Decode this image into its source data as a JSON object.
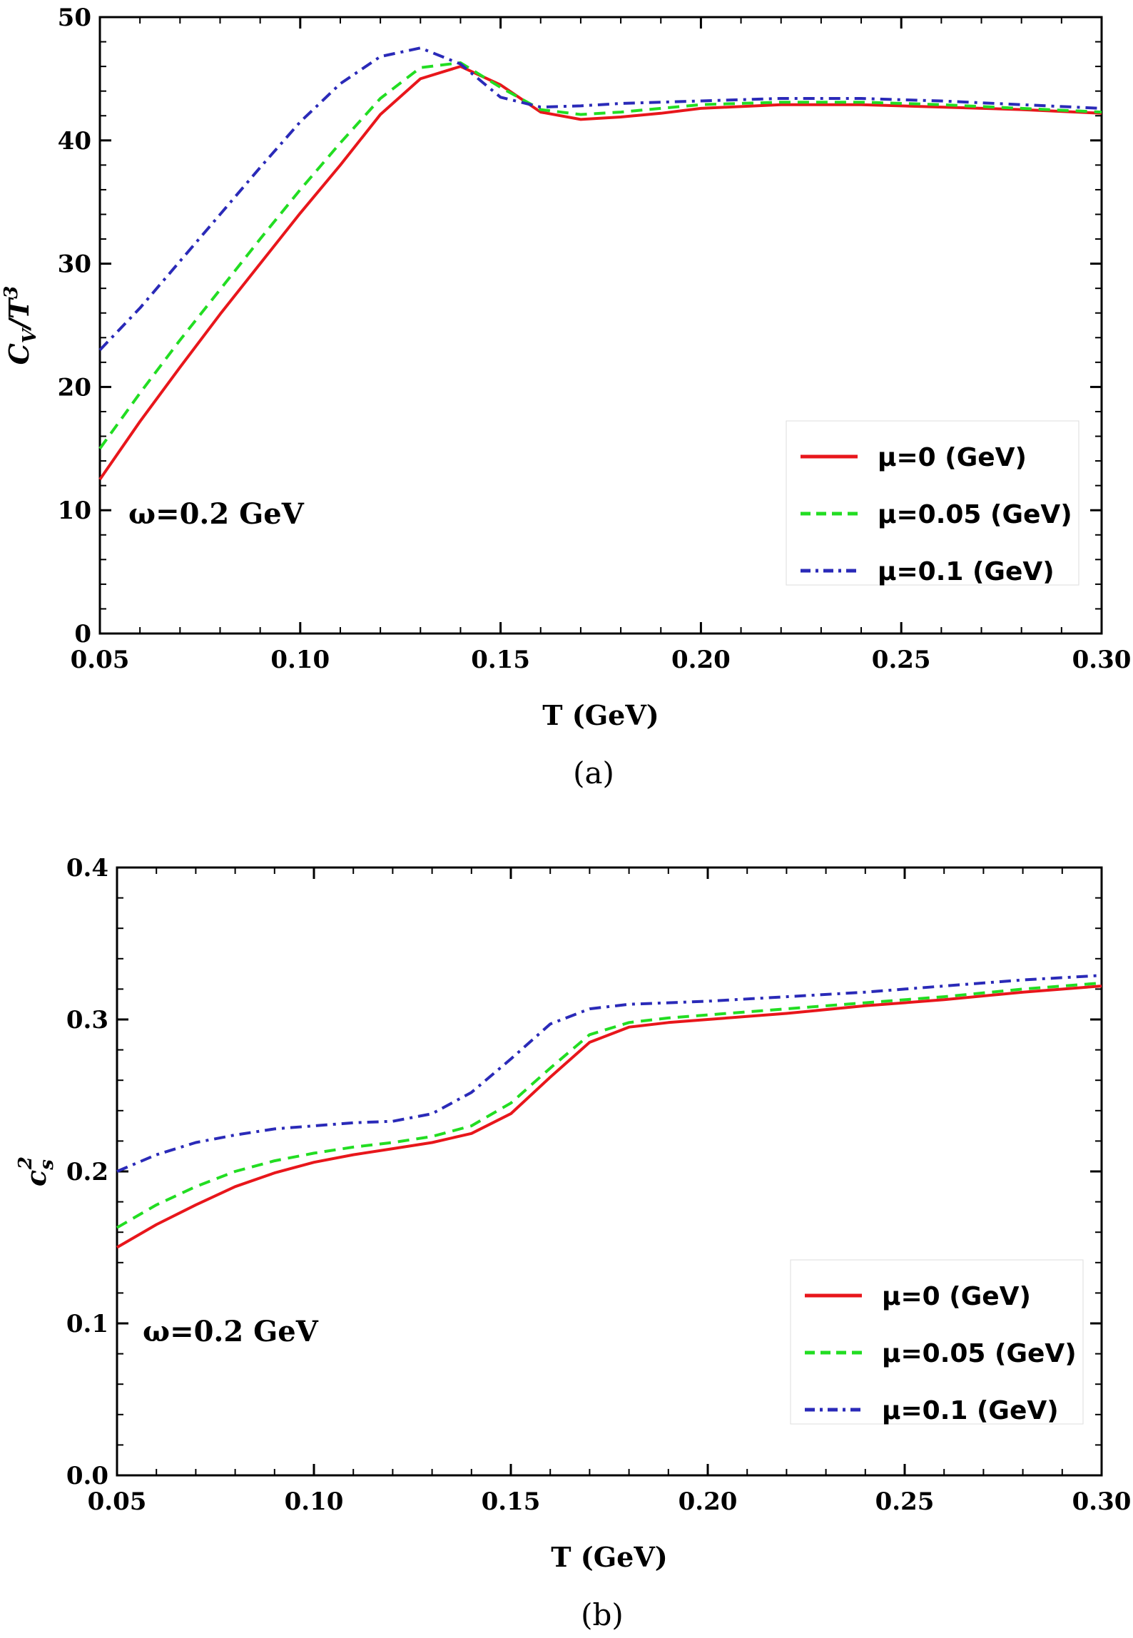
{
  "chart_data": [
    {
      "type": "line",
      "panel_label": "(a)",
      "xlabel": "T (GeV)",
      "ylabel_main": "C",
      "ylabel_sub": "V",
      "ylabel_rest": "/T",
      "ylabel_sup": "3",
      "xlim": [
        0.05,
        0.3
      ],
      "ylim": [
        0,
        50
      ],
      "xticks": [
        "0.05",
        "0.10",
        "0.15",
        "0.20",
        "0.25",
        "0.30"
      ],
      "yticks": [
        "0",
        "10",
        "20",
        "30",
        "40",
        "50"
      ],
      "annotation": "ω=0.2 GeV",
      "legend_position": "bottom-right",
      "series": [
        {
          "name": "μ=0 (GeV)",
          "color": "#e8161b",
          "style": "solid",
          "x": [
            0.05,
            0.06,
            0.07,
            0.08,
            0.09,
            0.1,
            0.11,
            0.12,
            0.13,
            0.14,
            0.15,
            0.16,
            0.17,
            0.18,
            0.19,
            0.2,
            0.22,
            0.24,
            0.26,
            0.28,
            0.3
          ],
          "y": [
            12.5,
            17.2,
            21.6,
            25.9,
            30.0,
            34.1,
            38.0,
            42.1,
            45.0,
            46.0,
            44.5,
            42.3,
            41.7,
            41.9,
            42.2,
            42.6,
            42.9,
            42.9,
            42.7,
            42.5,
            42.2
          ]
        },
        {
          "name": "μ=0.05 (GeV)",
          "color": "#22dd22",
          "style": "dashed",
          "x": [
            0.05,
            0.06,
            0.07,
            0.08,
            0.09,
            0.1,
            0.11,
            0.12,
            0.13,
            0.14,
            0.15,
            0.16,
            0.17,
            0.18,
            0.19,
            0.2,
            0.22,
            0.24,
            0.26,
            0.28,
            0.3
          ],
          "y": [
            15.0,
            19.5,
            23.8,
            27.9,
            32.0,
            36.0,
            39.8,
            43.4,
            45.9,
            46.3,
            44.3,
            42.5,
            42.1,
            42.3,
            42.6,
            42.9,
            43.1,
            43.1,
            42.9,
            42.6,
            42.3
          ]
        },
        {
          "name": "μ=0.1 (GeV)",
          "color": "#2a2ab8",
          "style": "dashdot",
          "x": [
            0.05,
            0.06,
            0.07,
            0.08,
            0.09,
            0.1,
            0.11,
            0.12,
            0.13,
            0.14,
            0.15,
            0.16,
            0.17,
            0.18,
            0.19,
            0.2,
            0.22,
            0.24,
            0.26,
            0.28,
            0.3
          ],
          "y": [
            23.0,
            26.4,
            30.2,
            34.0,
            37.8,
            41.5,
            44.6,
            46.8,
            47.5,
            46.2,
            43.5,
            42.7,
            42.8,
            43.0,
            43.1,
            43.2,
            43.4,
            43.4,
            43.2,
            42.9,
            42.6
          ]
        }
      ]
    },
    {
      "type": "line",
      "panel_label": "(b)",
      "xlabel": "T (GeV)",
      "ylabel_main": "c",
      "ylabel_sub": "s",
      "ylabel_rest": "",
      "ylabel_sup": "2",
      "xlim": [
        0.05,
        0.3
      ],
      "ylim": [
        0.0,
        0.4
      ],
      "xticks": [
        "0.05",
        "0.10",
        "0.15",
        "0.20",
        "0.25",
        "0.30"
      ],
      "yticks": [
        "0.0",
        "0.1",
        "0.2",
        "0.3",
        "0.4"
      ],
      "annotation": "ω=0.2 GeV",
      "legend_position": "bottom-right",
      "series": [
        {
          "name": "μ=0 (GeV)",
          "color": "#e8161b",
          "style": "solid",
          "x": [
            0.05,
            0.06,
            0.07,
            0.08,
            0.09,
            0.1,
            0.11,
            0.12,
            0.13,
            0.14,
            0.15,
            0.16,
            0.17,
            0.18,
            0.19,
            0.2,
            0.22,
            0.24,
            0.26,
            0.28,
            0.3
          ],
          "y": [
            0.15,
            0.165,
            0.178,
            0.19,
            0.199,
            0.206,
            0.211,
            0.215,
            0.219,
            0.225,
            0.238,
            0.262,
            0.285,
            0.295,
            0.298,
            0.3,
            0.304,
            0.309,
            0.313,
            0.318,
            0.322
          ]
        },
        {
          "name": "μ=0.05 (GeV)",
          "color": "#22dd22",
          "style": "dashed",
          "x": [
            0.05,
            0.06,
            0.07,
            0.08,
            0.09,
            0.1,
            0.11,
            0.12,
            0.13,
            0.14,
            0.15,
            0.16,
            0.17,
            0.18,
            0.19,
            0.2,
            0.22,
            0.24,
            0.26,
            0.28,
            0.3
          ],
          "y": [
            0.163,
            0.178,
            0.19,
            0.2,
            0.207,
            0.212,
            0.216,
            0.219,
            0.223,
            0.23,
            0.245,
            0.268,
            0.29,
            0.298,
            0.301,
            0.303,
            0.307,
            0.311,
            0.315,
            0.32,
            0.324
          ]
        },
        {
          "name": "μ=0.1 (GeV)",
          "color": "#2a2ab8",
          "style": "dashdot",
          "x": [
            0.05,
            0.06,
            0.07,
            0.08,
            0.09,
            0.1,
            0.11,
            0.12,
            0.13,
            0.14,
            0.15,
            0.16,
            0.17,
            0.18,
            0.19,
            0.2,
            0.22,
            0.24,
            0.26,
            0.28,
            0.3
          ],
          "y": [
            0.2,
            0.211,
            0.219,
            0.224,
            0.228,
            0.23,
            0.232,
            0.233,
            0.238,
            0.252,
            0.274,
            0.297,
            0.307,
            0.31,
            0.311,
            0.312,
            0.315,
            0.318,
            0.322,
            0.326,
            0.329
          ]
        }
      ]
    }
  ]
}
